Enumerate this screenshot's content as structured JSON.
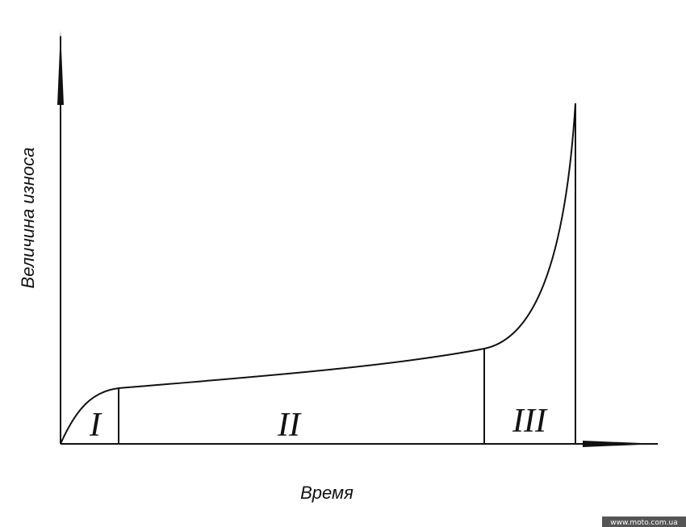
{
  "axes": {
    "y_label": "Величина износа",
    "x_label": "Время"
  },
  "zones": [
    {
      "label": "I"
    },
    {
      "label": "II"
    },
    {
      "label": "III"
    }
  ],
  "watermark": "www.moto.com.ua"
}
